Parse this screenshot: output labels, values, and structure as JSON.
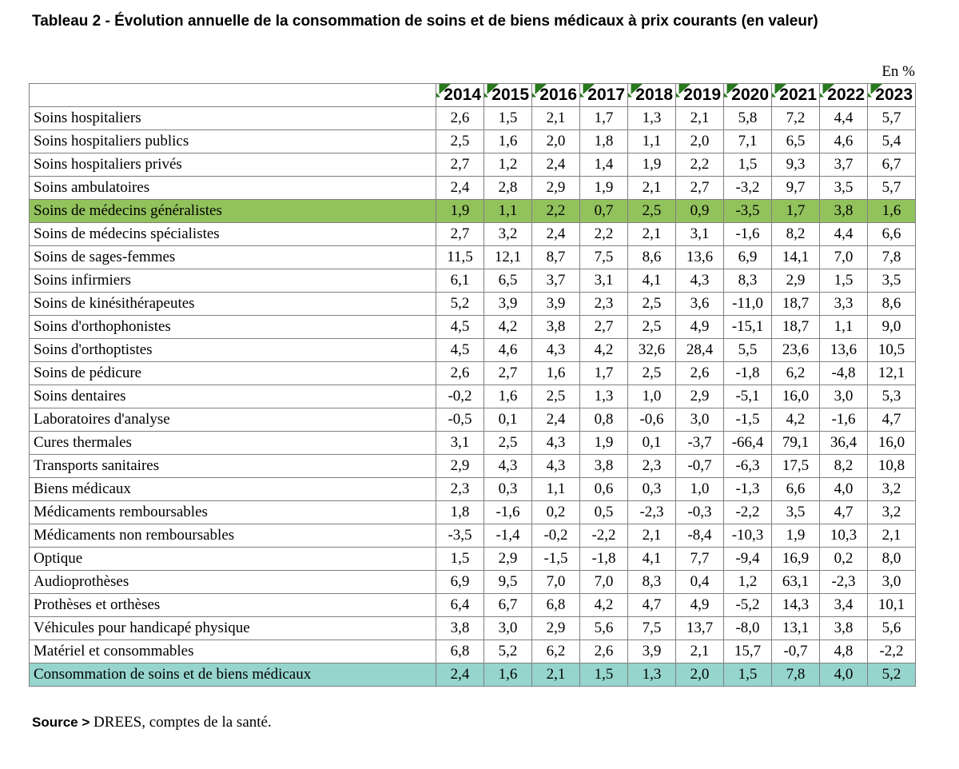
{
  "title": "Tableau 2 - Évolution annuelle de la consommation de soins et de biens médicaux à prix courants (en valeur)",
  "unit_label": "En %",
  "source": {
    "label": "Source >",
    "text": "DREES, comptes de la santé."
  },
  "colors": {
    "green_highlight": "#92c25c",
    "teal_highlight": "#96d5cd",
    "corner_triangle_green": "#28781e",
    "border_gray": "#7f7f7f"
  },
  "chart_data": {
    "type": "table",
    "title": "Tableau 2 - Évolution annuelle de la consommation de soins et de biens médicaux à prix courants (en valeur)",
    "unit": "En %",
    "years": [
      "2014",
      "2015",
      "2016",
      "2017",
      "2018",
      "2019",
      "2020",
      "2021",
      "2022",
      "2023"
    ],
    "rows": [
      {
        "label": "Soins hospitaliers",
        "highlight": null,
        "values": [
          "2,6",
          "1,5",
          "2,1",
          "1,7",
          "1,3",
          "2,1",
          "5,8",
          "7,2",
          "4,4",
          "5,7"
        ]
      },
      {
        "label": "Soins hospitaliers publics",
        "highlight": null,
        "values": [
          "2,5",
          "1,6",
          "2,0",
          "1,8",
          "1,1",
          "2,0",
          "7,1",
          "6,5",
          "4,6",
          "5,4"
        ]
      },
      {
        "label": "Soins hospitaliers privés",
        "highlight": null,
        "values": [
          "2,7",
          "1,2",
          "2,4",
          "1,4",
          "1,9",
          "2,2",
          "1,5",
          "9,3",
          "3,7",
          "6,7"
        ]
      },
      {
        "label": "Soins ambulatoires",
        "highlight": null,
        "values": [
          "2,4",
          "2,8",
          "2,9",
          "1,9",
          "2,1",
          "2,7",
          "-3,2",
          "9,7",
          "3,5",
          "5,7"
        ]
      },
      {
        "label": "Soins de médecins généralistes",
        "highlight": "green",
        "values": [
          "1,9",
          "1,1",
          "2,2",
          "0,7",
          "2,5",
          "0,9",
          "-3,5",
          "1,7",
          "3,8",
          "1,6"
        ]
      },
      {
        "label": "Soins de médecins spécialistes",
        "highlight": null,
        "values": [
          "2,7",
          "3,2",
          "2,4",
          "2,2",
          "2,1",
          "3,1",
          "-1,6",
          "8,2",
          "4,4",
          "6,6"
        ]
      },
      {
        "label": "Soins de sages-femmes",
        "highlight": null,
        "values": [
          "11,5",
          "12,1",
          "8,7",
          "7,5",
          "8,6",
          "13,6",
          "6,9",
          "14,1",
          "7,0",
          "7,8"
        ]
      },
      {
        "label": "Soins infirmiers",
        "highlight": null,
        "values": [
          "6,1",
          "6,5",
          "3,7",
          "3,1",
          "4,1",
          "4,3",
          "8,3",
          "2,9",
          "1,5",
          "3,5"
        ]
      },
      {
        "label": "Soins de kinésithérapeutes",
        "highlight": null,
        "values": [
          "5,2",
          "3,9",
          "3,9",
          "2,3",
          "2,5",
          "3,6",
          "-11,0",
          "18,7",
          "3,3",
          "8,6"
        ]
      },
      {
        "label": "Soins d'orthophonistes",
        "highlight": null,
        "values": [
          "4,5",
          "4,2",
          "3,8",
          "2,7",
          "2,5",
          "4,9",
          "-15,1",
          "18,7",
          "1,1",
          "9,0"
        ]
      },
      {
        "label": "Soins d'orthoptistes",
        "highlight": null,
        "values": [
          "4,5",
          "4,6",
          "4,3",
          "4,2",
          "32,6",
          "28,4",
          "5,5",
          "23,6",
          "13,6",
          "10,5"
        ]
      },
      {
        "label": "Soins de pédicure",
        "highlight": null,
        "values": [
          "2,6",
          "2,7",
          "1,6",
          "1,7",
          "2,5",
          "2,6",
          "-1,8",
          "6,2",
          "-4,8",
          "12,1"
        ]
      },
      {
        "label": "Soins dentaires",
        "highlight": null,
        "values": [
          "-0,2",
          "1,6",
          "2,5",
          "1,3",
          "1,0",
          "2,9",
          "-5,1",
          "16,0",
          "3,0",
          "5,3"
        ]
      },
      {
        "label": "Laboratoires d'analyse",
        "highlight": null,
        "values": [
          "-0,5",
          "0,1",
          "2,4",
          "0,8",
          "-0,6",
          "3,0",
          "-1,5",
          "4,2",
          "-1,6",
          "4,7"
        ]
      },
      {
        "label": "Cures thermales",
        "highlight": null,
        "values": [
          "3,1",
          "2,5",
          "4,3",
          "1,9",
          "0,1",
          "-3,7",
          "-66,4",
          "79,1",
          "36,4",
          "16,0"
        ]
      },
      {
        "label": "Transports sanitaires",
        "highlight": null,
        "values": [
          "2,9",
          "4,3",
          "4,3",
          "3,8",
          "2,3",
          "-0,7",
          "-6,3",
          "17,5",
          "8,2",
          "10,8"
        ]
      },
      {
        "label": "Biens médicaux",
        "highlight": null,
        "values": [
          "2,3",
          "0,3",
          "1,1",
          "0,6",
          "0,3",
          "1,0",
          "-1,3",
          "6,6",
          "4,0",
          "3,2"
        ]
      },
      {
        "label": "Médicaments remboursables",
        "highlight": null,
        "values": [
          "1,8",
          "-1,6",
          "0,2",
          "0,5",
          "-2,3",
          "-0,3",
          "-2,2",
          "3,5",
          "4,7",
          "3,2"
        ]
      },
      {
        "label": "Médicaments non remboursables",
        "highlight": null,
        "values": [
          "-3,5",
          "-1,4",
          "-0,2",
          "-2,2",
          "2,1",
          "-8,4",
          "-10,3",
          "1,9",
          "10,3",
          "2,1"
        ]
      },
      {
        "label": "Optique",
        "highlight": null,
        "values": [
          "1,5",
          "2,9",
          "-1,5",
          "-1,8",
          "4,1",
          "7,7",
          "-9,4",
          "16,9",
          "0,2",
          "8,0"
        ]
      },
      {
        "label": "Audioprothèses",
        "highlight": null,
        "values": [
          "6,9",
          "9,5",
          "7,0",
          "7,0",
          "8,3",
          "0,4",
          "1,2",
          "63,1",
          "-2,3",
          "3,0"
        ]
      },
      {
        "label": "Prothèses et orthèses",
        "highlight": null,
        "values": [
          "6,4",
          "6,7",
          "6,8",
          "4,2",
          "4,7",
          "4,9",
          "-5,2",
          "14,3",
          "3,4",
          "10,1"
        ]
      },
      {
        "label": "Véhicules pour handicapé physique",
        "highlight": null,
        "values": [
          "3,8",
          "3,0",
          "2,9",
          "5,6",
          "7,5",
          "13,7",
          "-8,0",
          "13,1",
          "3,8",
          "5,6"
        ]
      },
      {
        "label": "Matériel et consommables",
        "highlight": null,
        "values": [
          "6,8",
          "5,2",
          "6,2",
          "2,6",
          "3,9",
          "2,1",
          "15,7",
          "-0,7",
          "4,8",
          "-2,2"
        ]
      },
      {
        "label": "Consommation de soins et de biens médicaux",
        "highlight": "teal",
        "values": [
          "2,4",
          "1,6",
          "2,1",
          "1,5",
          "1,3",
          "2,0",
          "1,5",
          "7,8",
          "4,0",
          "5,2"
        ]
      }
    ]
  }
}
